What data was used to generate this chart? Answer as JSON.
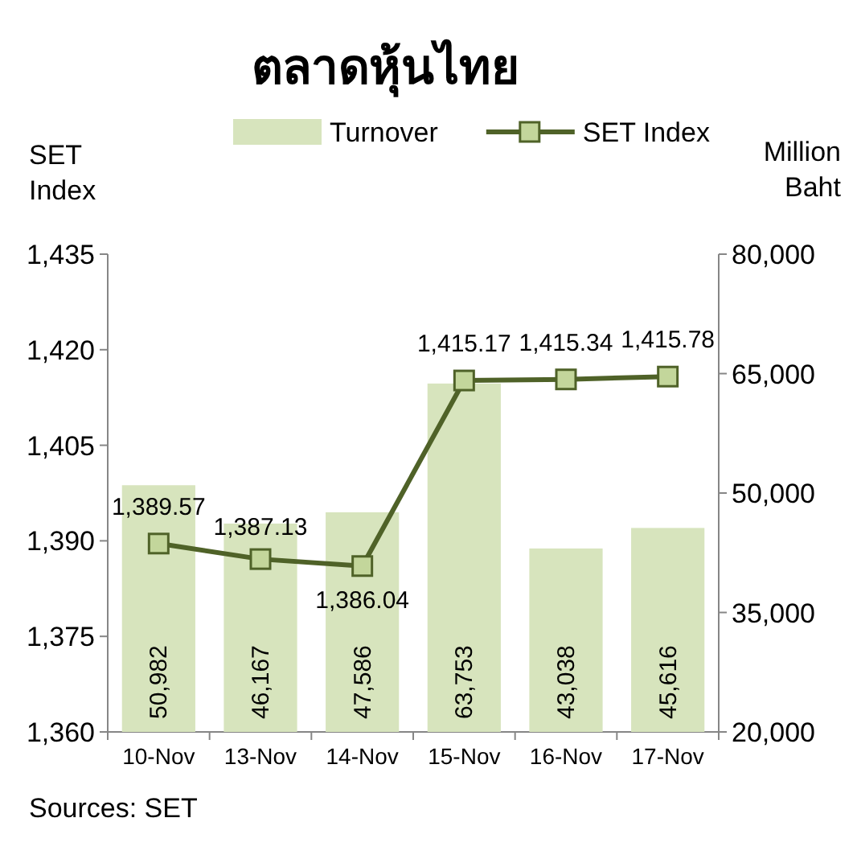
{
  "chart_data": {
    "type": "bar",
    "title": "ตลาดหุ้นไทย",
    "categories": [
      "10-Nov",
      "13-Nov",
      "14-Nov",
      "15-Nov",
      "16-Nov",
      "17-Nov"
    ],
    "series": [
      {
        "name": "Turnover",
        "axis": "y2",
        "color": "#d7e4bd",
        "values": [
          50982,
          46167,
          47586,
          63753,
          43038,
          45616
        ],
        "value_labels": [
          "50,982",
          "46,167",
          "47,586",
          "63,753",
          "43,038",
          "45,616"
        ]
      },
      {
        "name": "SET Index",
        "type": "line",
        "axis": "y",
        "color": "#4f6228",
        "values": [
          1389.57,
          1387.13,
          1386.04,
          1415.17,
          1415.34,
          1415.78
        ],
        "value_labels": [
          "1,389.57",
          "1,387.13",
          "1,386.04",
          "1,415.17",
          "1,415.34",
          "1,415.78"
        ]
      }
    ],
    "ylabel": "SET Index",
    "y2label": "Million Baht",
    "ylim": [
      1360,
      1435
    ],
    "yticks": [
      {
        "value": 1360,
        "label": "1,360"
      },
      {
        "value": 1375,
        "label": "1,375"
      },
      {
        "value": 1390,
        "label": "1,390"
      },
      {
        "value": 1405,
        "label": "1,405"
      },
      {
        "value": 1420,
        "label": "1,420"
      },
      {
        "value": 1435,
        "label": "1,435"
      }
    ],
    "y2lim": [
      20000,
      80000
    ],
    "y2ticks": [
      {
        "value": 20000,
        "label": "20,000"
      },
      {
        "value": 35000,
        "label": "35,000"
      },
      {
        "value": 50000,
        "label": "50,000"
      },
      {
        "value": 65000,
        "label": "65,000"
      },
      {
        "value": 80000,
        "label": "80,000"
      }
    ],
    "legend": "top",
    "marker": "square",
    "grid": false,
    "annotations": [
      "Sources: SET"
    ]
  }
}
